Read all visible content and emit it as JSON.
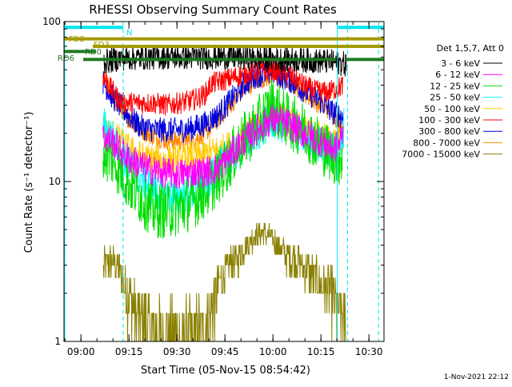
{
  "chart_data": {
    "type": "line",
    "title": "RHESSI Observing Summary Count Rates",
    "xlabel": "Start Time (05-Nov-15 08:54:42)",
    "ylabel": "Count Rate (s⁻¹ detector⁻¹)",
    "y_scale": "log",
    "ylim": [
      1,
      100
    ],
    "xlim_minutes": [
      0,
      100
    ],
    "x_ticks": [
      {
        "label": "09:00",
        "min": 5.3
      },
      {
        "label": "09:15",
        "min": 20.3
      },
      {
        "label": "09:30",
        "min": 35.3
      },
      {
        "label": "09:45",
        "min": 50.3
      },
      {
        "label": "10:00",
        "min": 65.3
      },
      {
        "label": "10:15",
        "min": 80.3
      },
      {
        "label": "10:30",
        "min": 95.3
      }
    ],
    "y_ticks": [
      {
        "label": "1",
        "value": 1
      },
      {
        "label": "10",
        "value": 10
      },
      {
        "label": "100",
        "value": 100
      }
    ],
    "legend_header": "Det 1,5,7, Att 0",
    "legend_position": "right",
    "timestamp": "1-Nov-2021 22:12",
    "flags": [
      {
        "label": "N",
        "color": "#00e5ee",
        "y": 92,
        "segments": [
          [
            0,
            18.5
          ],
          [
            85.6,
            100
          ]
        ]
      },
      {
        "label": "FD2",
        "color": "#a39a00",
        "y": 78,
        "segments": [
          [
            0,
            100
          ]
        ]
      },
      {
        "label": "FD3",
        "color": "#a39a00",
        "y": 70,
        "segments": [
          [
            9,
            100
          ]
        ]
      },
      {
        "label": "RD0",
        "color": "#1e7a1e",
        "y": 65,
        "segments": [
          [
            0,
            10
          ]
        ]
      },
      {
        "label": "RD6",
        "color": "#1e7a1e",
        "y": 58,
        "segments": [
          [
            6,
            85
          ],
          [
            88,
            100
          ]
        ]
      }
    ],
    "vlines": [
      {
        "min": 0.2,
        "color": "#00e5ee",
        "style": "solid"
      },
      {
        "min": 18.5,
        "color": "#00e5ee",
        "style": "dash"
      },
      {
        "min": 85.4,
        "color": "#00e5ee",
        "style": "solid"
      },
      {
        "min": 88.6,
        "color": "#00e5ee",
        "style": "dash"
      },
      {
        "min": 98.3,
        "color": "#00e5ee",
        "style": "dash"
      }
    ],
    "series": [
      {
        "name": "3 - 6 keV",
        "color": "#000000",
        "noise": 0.08,
        "points": [
          [
            12.5,
            56
          ],
          [
            18,
            59
          ],
          [
            30,
            60
          ],
          [
            50,
            60
          ],
          [
            70,
            58
          ],
          [
            84,
            56
          ],
          [
            88.4,
            54
          ]
        ]
      },
      {
        "name": "6 - 12 keV",
        "color": "#ff00ff",
        "noise": 0.1,
        "points": [
          [
            12.2,
            19
          ],
          [
            15,
            18
          ],
          [
            20,
            14
          ],
          [
            26,
            12
          ],
          [
            30,
            11.5
          ],
          [
            35,
            11
          ],
          [
            40,
            11.5
          ],
          [
            44,
            11.5
          ],
          [
            48,
            12
          ],
          [
            55,
            17
          ],
          [
            60,
            21
          ],
          [
            65,
            24.5
          ],
          [
            70,
            23
          ],
          [
            75,
            20
          ],
          [
            80,
            18
          ],
          [
            84,
            16
          ],
          [
            86,
            17
          ],
          [
            87.3,
            21
          ]
        ]
      },
      {
        "name": "12 - 25 keV",
        "color": "#00dd00",
        "noise": 0.18,
        "points": [
          [
            12.2,
            15
          ],
          [
            15,
            14
          ],
          [
            20,
            10
          ],
          [
            24,
            8
          ],
          [
            28,
            6.6
          ],
          [
            32,
            6.6
          ],
          [
            36,
            6.8
          ],
          [
            40,
            7.5
          ],
          [
            45,
            9
          ],
          [
            50,
            12
          ],
          [
            55,
            17
          ],
          [
            60,
            22
          ],
          [
            65,
            30
          ],
          [
            70,
            24
          ],
          [
            75,
            21
          ],
          [
            80,
            17
          ],
          [
            84,
            14.5
          ],
          [
            86,
            14
          ],
          [
            87,
            15
          ]
        ]
      },
      {
        "name": "25 - 50 keV",
        "color": "#00ffff",
        "noise": 0.12,
        "points": [
          [
            12.2,
            23
          ],
          [
            15,
            19
          ],
          [
            20,
            13
          ],
          [
            25,
            10
          ],
          [
            30,
            8.5
          ],
          [
            35,
            8
          ],
          [
            40,
            8.5
          ],
          [
            45,
            10
          ],
          [
            50,
            13
          ],
          [
            55,
            16
          ],
          [
            60,
            20
          ],
          [
            65,
            24
          ],
          [
            70,
            22
          ],
          [
            75,
            19
          ],
          [
            80,
            17
          ],
          [
            84,
            15.5
          ],
          [
            86.5,
            15.5
          ],
          [
            87.5,
            23
          ]
        ]
      },
      {
        "name": "50 - 100 keV",
        "color": "#ffcc00",
        "noise": 0.1,
        "points": [
          [
            12.2,
            21
          ],
          [
            15,
            20
          ],
          [
            20,
            16
          ],
          [
            25,
            14
          ],
          [
            30,
            13.5
          ],
          [
            35,
            13.5
          ],
          [
            40,
            14
          ],
          [
            45,
            15
          ],
          [
            50,
            16
          ],
          [
            55,
            18
          ],
          [
            60,
            22
          ],
          [
            65,
            25
          ],
          [
            70,
            24
          ],
          [
            75,
            21
          ],
          [
            80,
            19
          ],
          [
            84,
            17.5
          ],
          [
            86.5,
            17.5
          ],
          [
            87.5,
            18.5
          ]
        ]
      },
      {
        "name": "100 - 300 keV",
        "color": "#ff0000",
        "noise": 0.07,
        "points": [
          [
            12.2,
            46
          ],
          [
            15,
            37
          ],
          [
            18,
            31
          ],
          [
            23,
            31
          ],
          [
            28,
            31
          ],
          [
            32,
            30
          ],
          [
            36,
            31
          ],
          [
            40,
            32
          ],
          [
            44,
            35
          ],
          [
            46,
            41
          ],
          [
            50,
            43
          ],
          [
            55,
            46
          ],
          [
            60,
            49
          ],
          [
            65,
            50
          ],
          [
            70,
            47
          ],
          [
            75,
            40
          ],
          [
            78,
            37
          ],
          [
            82,
            36
          ],
          [
            85,
            38
          ],
          [
            87.3,
            40
          ]
        ]
      },
      {
        "name": "300 - 800 keV",
        "color": "#0000dd",
        "noise": 0.08,
        "points": [
          [
            12.2,
            42
          ],
          [
            15,
            34
          ],
          [
            20,
            26
          ],
          [
            24,
            22
          ],
          [
            28,
            21
          ],
          [
            32,
            21
          ],
          [
            36,
            21
          ],
          [
            40,
            21.5
          ],
          [
            44,
            23
          ],
          [
            48,
            26
          ],
          [
            52,
            32
          ],
          [
            56,
            40
          ],
          [
            60,
            46
          ],
          [
            65,
            48
          ],
          [
            70,
            44
          ],
          [
            75,
            37
          ],
          [
            80,
            32
          ],
          [
            84,
            27
          ],
          [
            86,
            26
          ],
          [
            87.3,
            25
          ]
        ]
      },
      {
        "name": "800 - 7000 keV",
        "color": "#ff8800",
        "noise": 0.06,
        "points": [
          [
            12.2,
            48
          ],
          [
            15,
            34
          ],
          [
            20,
            25
          ],
          [
            24,
            21
          ],
          [
            28,
            19
          ],
          [
            32,
            18
          ],
          [
            36,
            18
          ],
          [
            40,
            18
          ],
          [
            44,
            20
          ],
          [
            48,
            24
          ],
          [
            52,
            30
          ],
          [
            56,
            37
          ],
          [
            60,
            43
          ],
          [
            65,
            45
          ],
          [
            70,
            42
          ],
          [
            75,
            36
          ],
          [
            80,
            30
          ],
          [
            84,
            27
          ],
          [
            86,
            23
          ],
          [
            87.3,
            22
          ]
        ]
      },
      {
        "name": "7000 - 15000 keV",
        "color": "#8a8000",
        "noise": 0.0,
        "steps": true,
        "points": [
          [
            12.3,
            3.0
          ],
          [
            14,
            3.2
          ],
          [
            16,
            3.1
          ],
          [
            18,
            2.6
          ],
          [
            20,
            2.0
          ],
          [
            22,
            1.6
          ],
          [
            24,
            1.4
          ],
          [
            26,
            1.3
          ],
          [
            28,
            1.0
          ],
          [
            32,
            1.0
          ],
          [
            36,
            1.0
          ],
          [
            40,
            1.0
          ],
          [
            44,
            1.2
          ],
          [
            46,
            1.6
          ],
          [
            48,
            2.2
          ],
          [
            50,
            2.6
          ],
          [
            52,
            3.1
          ],
          [
            54,
            3.3
          ],
          [
            56,
            3.8
          ],
          [
            58,
            4.2
          ],
          [
            60,
            4.6
          ],
          [
            62,
            4.8
          ],
          [
            64,
            4.6
          ],
          [
            66,
            4.2
          ],
          [
            68,
            3.8
          ],
          [
            70,
            3.4
          ],
          [
            72,
            3.3
          ],
          [
            74,
            3.1
          ],
          [
            76,
            2.8
          ],
          [
            78,
            2.6
          ],
          [
            80,
            2.4
          ],
          [
            82,
            2.2
          ],
          [
            84,
            2.0
          ],
          [
            86,
            1.4
          ],
          [
            88,
            1.3
          ],
          [
            88.4,
            1.0
          ]
        ]
      }
    ]
  }
}
